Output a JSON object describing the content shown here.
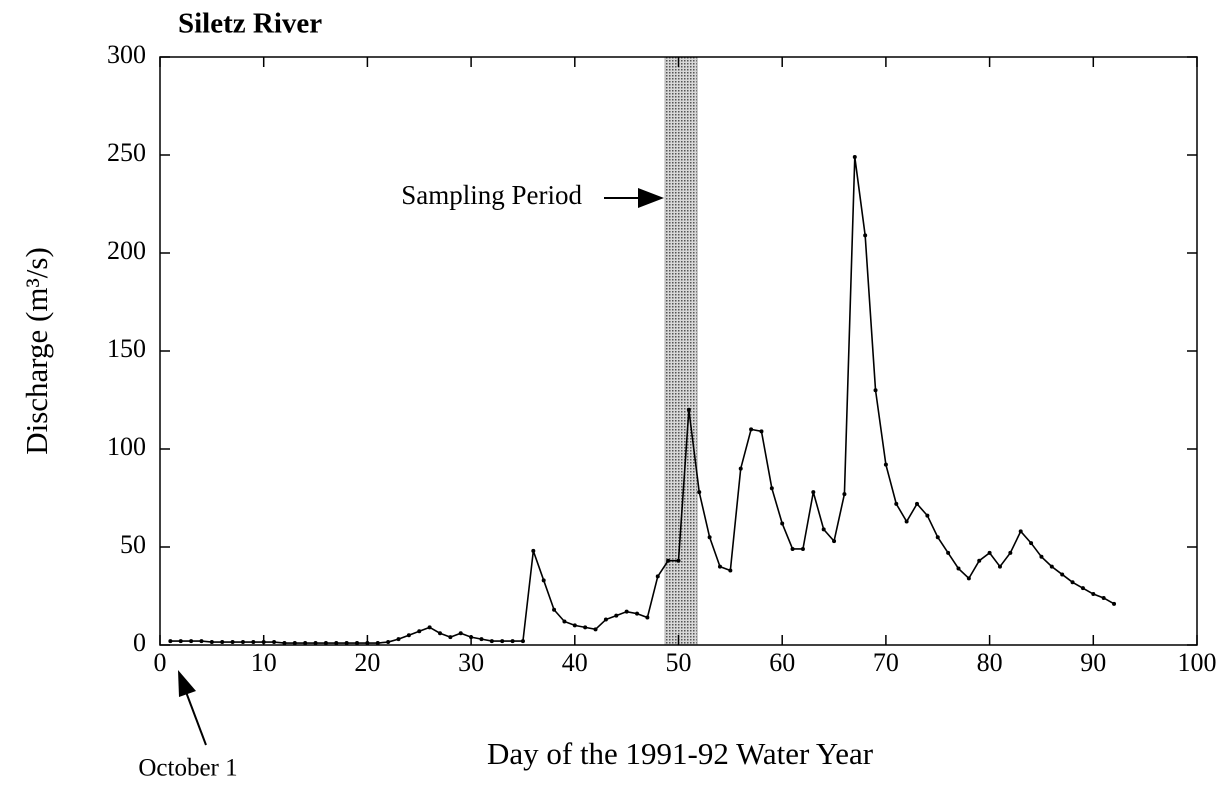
{
  "chart_data": {
    "type": "line",
    "title": "Siletz River",
    "x_label": "Day of the 1991-92 Water Year",
    "y_label": "Discharge (m³/s)",
    "xlim": [
      0,
      100
    ],
    "ylim": [
      0,
      300
    ],
    "xticks": [
      0,
      10,
      20,
      30,
      40,
      50,
      60,
      70,
      80,
      90,
      100
    ],
    "yticks": [
      0,
      50,
      100,
      150,
      200,
      250,
      300
    ],
    "color": "#000000",
    "shaded_period": [
      48.7,
      51.8
    ],
    "shaded_color": "#b0b0b0",
    "annotations": [
      "Sampling Period",
      "October 1"
    ],
    "x": [
      1,
      2,
      3,
      4,
      5,
      6,
      7,
      8,
      9,
      10,
      11,
      12,
      13,
      14,
      15,
      16,
      17,
      18,
      19,
      20,
      21,
      22,
      23,
      24,
      25,
      26,
      27,
      28,
      29,
      30,
      31,
      32,
      33,
      34,
      35,
      36,
      37,
      38,
      39,
      40,
      41,
      42,
      43,
      44,
      45,
      46,
      47,
      48,
      49,
      50,
      51,
      52,
      53,
      54,
      55,
      56,
      57,
      58,
      59,
      60,
      61,
      62,
      63,
      64,
      65,
      66,
      67,
      68,
      69,
      70,
      71,
      72,
      73,
      74,
      75,
      76,
      77,
      78,
      79,
      80,
      81,
      82,
      83,
      84,
      85,
      86,
      87,
      88,
      89,
      90,
      91,
      92
    ],
    "values": [
      2,
      2,
      2,
      2,
      1.5,
      1.5,
      1.5,
      1.5,
      1.5,
      1.5,
      1.5,
      1,
      1,
      1,
      1,
      1,
      1,
      1,
      1,
      1,
      1,
      1.5,
      3,
      5,
      7,
      9,
      6,
      4,
      6,
      4,
      3,
      2,
      2,
      2,
      2,
      48,
      33,
      18,
      12,
      10,
      9,
      8,
      13,
      15,
      17,
      16,
      14,
      35,
      43,
      43,
      120,
      78,
      55,
      40,
      38,
      90,
      110,
      109,
      80,
      62,
      49,
      49,
      78,
      59,
      53,
      77,
      249,
      209,
      130,
      92,
      72,
      63,
      72,
      66,
      55,
      47,
      39,
      34,
      43,
      47,
      40,
      47,
      58,
      52,
      45,
      40,
      36,
      32,
      29,
      26,
      24,
      21
    ]
  }
}
